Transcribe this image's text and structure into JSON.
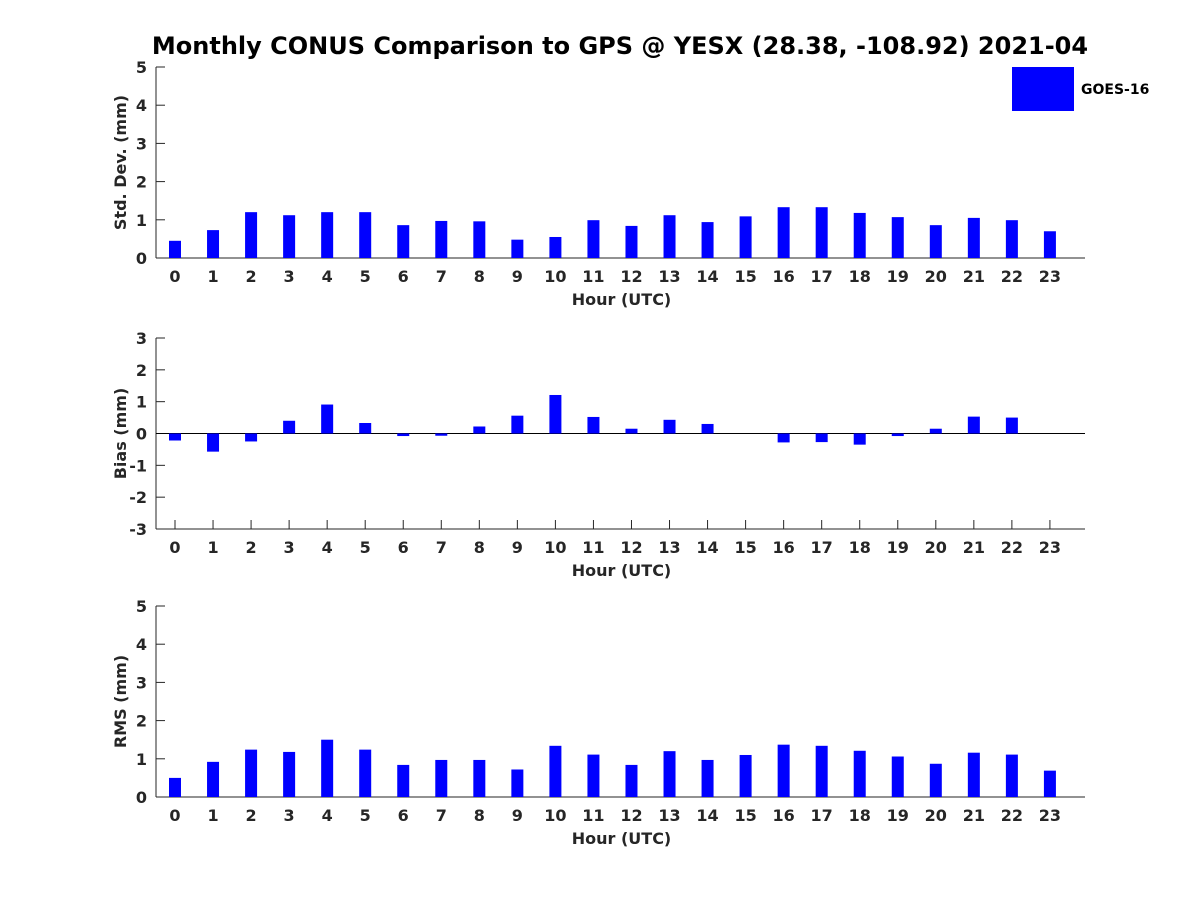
{
  "chart_data": {
    "title": "Monthly CONUS Comparison to GPS @ YESX (28.38, -108.92) 2021-04",
    "legend": {
      "label": "GOES-16",
      "position": "top-right",
      "color": "#0000ff"
    },
    "bar_color": "#0000ff",
    "axis_color": "#262626",
    "panels": [
      {
        "type": "bar",
        "ylabel": "Std. Dev. (mm)",
        "xlabel": "Hour (UTC)",
        "ylim": [
          0,
          5
        ],
        "yticks": [
          0,
          1,
          2,
          3,
          4,
          5
        ],
        "categories": [
          "0",
          "1",
          "2",
          "3",
          "4",
          "5",
          "6",
          "7",
          "8",
          "9",
          "10",
          "11",
          "12",
          "13",
          "14",
          "15",
          "16",
          "17",
          "18",
          "19",
          "20",
          "21",
          "22",
          "23"
        ],
        "series": [
          {
            "name": "GOES-16",
            "values": [
              0.45,
              0.73,
              1.2,
              1.12,
              1.2,
              1.2,
              0.86,
              0.97,
              0.96,
              0.48,
              0.55,
              0.99,
              0.84,
              1.12,
              0.94,
              1.09,
              1.33,
              1.33,
              1.18,
              1.07,
              0.86,
              1.05,
              0.99,
              0.7
            ]
          }
        ]
      },
      {
        "type": "bar",
        "ylabel": "Bias (mm)",
        "xlabel": "Hour (UTC)",
        "ylim": [
          -3,
          3
        ],
        "yticks": [
          -3,
          -2,
          -1,
          0,
          1,
          2,
          3
        ],
        "zero_line": true,
        "categories": [
          "0",
          "1",
          "2",
          "3",
          "4",
          "5",
          "6",
          "7",
          "8",
          "9",
          "10",
          "11",
          "12",
          "13",
          "14",
          "15",
          "16",
          "17",
          "18",
          "19",
          "20",
          "21",
          "22",
          "23"
        ],
        "series": [
          {
            "name": "GOES-16",
            "values": [
              -0.22,
              -0.57,
              -0.25,
              0.4,
              0.91,
              0.33,
              -0.08,
              -0.07,
              0.22,
              0.56,
              1.21,
              0.52,
              0.15,
              0.43,
              0.3,
              0.0,
              -0.28,
              -0.27,
              -0.35,
              -0.08,
              0.15,
              0.53,
              0.5,
              0.0
            ]
          }
        ]
      },
      {
        "type": "bar",
        "ylabel": "RMS (mm)",
        "xlabel": "Hour (UTC)",
        "ylim": [
          0,
          5
        ],
        "yticks": [
          0,
          1,
          2,
          3,
          4,
          5
        ],
        "categories": [
          "0",
          "1",
          "2",
          "3",
          "4",
          "5",
          "6",
          "7",
          "8",
          "9",
          "10",
          "11",
          "12",
          "13",
          "14",
          "15",
          "16",
          "17",
          "18",
          "19",
          "20",
          "21",
          "22",
          "23"
        ],
        "series": [
          {
            "name": "GOES-16",
            "values": [
              0.5,
              0.92,
              1.24,
              1.18,
              1.5,
              1.24,
              0.84,
              0.97,
              0.97,
              0.72,
              1.34,
              1.11,
              0.84,
              1.2,
              0.97,
              1.1,
              1.37,
              1.34,
              1.21,
              1.06,
              0.87,
              1.16,
              1.11,
              0.69
            ]
          }
        ]
      }
    ]
  }
}
